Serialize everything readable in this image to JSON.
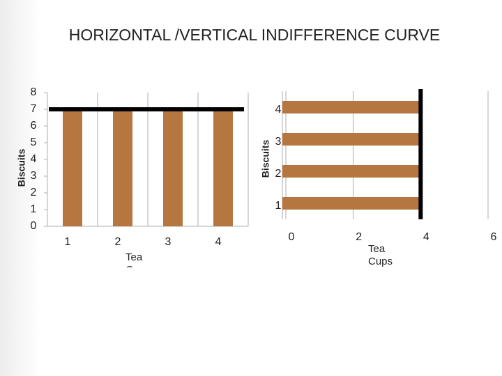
{
  "slide": {
    "title": "HORIZONTAL /VERTICAL INDIFFERENCE CURVE"
  },
  "chart_data": [
    {
      "type": "bar",
      "categories": [
        "1",
        "2",
        "3",
        "4"
      ],
      "values": [
        7,
        7,
        7,
        7
      ],
      "color": "#b5773f",
      "ylim": [
        0,
        8
      ],
      "yticks": [
        0,
        1,
        2,
        3,
        4,
        5,
        6,
        7,
        8
      ],
      "y_label": "Biscuits",
      "x_label": "Tea Cups",
      "curve": {
        "value": 7,
        "color": "#000000"
      }
    },
    {
      "type": "barh",
      "categories": [
        "1",
        "2",
        "3",
        "4"
      ],
      "values": [
        4,
        4,
        4,
        4
      ],
      "color": "#b5773f",
      "xlim": [
        0,
        6
      ],
      "xticks": [
        0,
        2,
        4,
        6
      ],
      "y_label": "Biscuits",
      "x_label": "Tea Cups",
      "curve": {
        "value": 4,
        "color": "#000000"
      }
    }
  ]
}
